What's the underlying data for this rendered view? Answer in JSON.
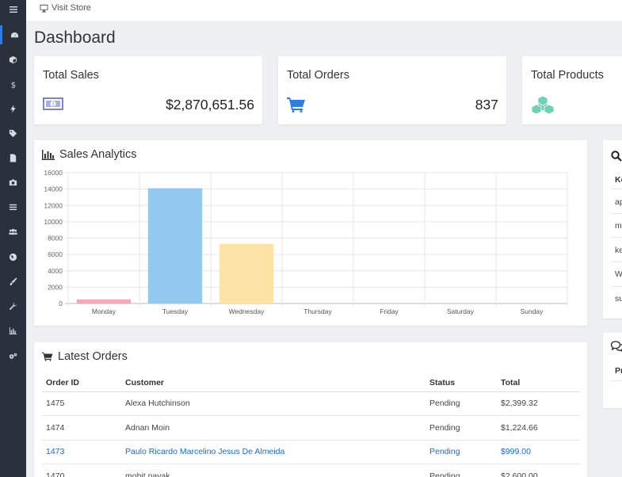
{
  "topbar": {
    "visit_store": "Visit Store"
  },
  "page": {
    "title": "Dashboard"
  },
  "stats": {
    "sales": {
      "title": "Total Sales",
      "value": "$2,870,651.56"
    },
    "orders": {
      "title": "Total Orders",
      "value": "837"
    },
    "products": {
      "title": "Total Products"
    }
  },
  "colors": {
    "accent": "#2f7de1",
    "sidebar": "#2b313c",
    "link": "#2168c2",
    "cart_icon": "#2f7de1",
    "cube_icon": "#6fd0b4",
    "money_icon": "#7a84c9"
  },
  "sidebar": {
    "icons": [
      "menu-icon",
      "dashboard-icon",
      "cube-icon",
      "dollar-icon",
      "bolt-icon",
      "tags-icon",
      "file-icon",
      "camera-icon",
      "list-icon",
      "users-icon",
      "globe-icon",
      "brush-icon",
      "wrench-icon",
      "bar-chart-icon",
      "gears-icon"
    ]
  },
  "analytics": {
    "title": "Sales Analytics"
  },
  "chart_data": {
    "type": "bar",
    "title": "Sales Analytics",
    "categories": [
      "Monday",
      "Tuesday",
      "Wednesday",
      "Thursday",
      "Friday",
      "Saturday",
      "Sunday"
    ],
    "values": [
      500,
      14100,
      7300,
      0,
      0,
      0,
      0
    ],
    "colors": [
      "#f7a8b8",
      "#93c8ef",
      "#fde3a6",
      "#cccccc",
      "#cccccc",
      "#cccccc",
      "#cccccc"
    ],
    "ylim": [
      0,
      16000
    ],
    "yticks": [
      "16000",
      "14000",
      "12000",
      "10000",
      "8000",
      "6000",
      "4000",
      "2000",
      "0"
    ],
    "grid": true
  },
  "orders": {
    "title": "Latest Orders",
    "columns": {
      "id": "Order ID",
      "customer": "Customer",
      "status": "Status",
      "total": "Total"
    },
    "rows": [
      {
        "id": "1475",
        "customer": "Alexa Hutchinson",
        "status": "Pending",
        "total": "$2,399.32"
      },
      {
        "id": "1474",
        "customer": "Adnan Moin",
        "status": "Pending",
        "total": "$1,224.66"
      },
      {
        "id": "1473",
        "customer": "Paulo Ricardo Marcelino Jesus De Almeida",
        "status": "Pending",
        "total": "$999.00"
      },
      {
        "id": "1470",
        "customer": "mohit nayak",
        "status": "Pending",
        "total": "$2,600.00"
      }
    ]
  },
  "right_panel": {
    "header": "Ke",
    "items": [
      "ap",
      "m",
      "ke",
      "W",
      "su"
    ],
    "second_header": "Pr"
  }
}
